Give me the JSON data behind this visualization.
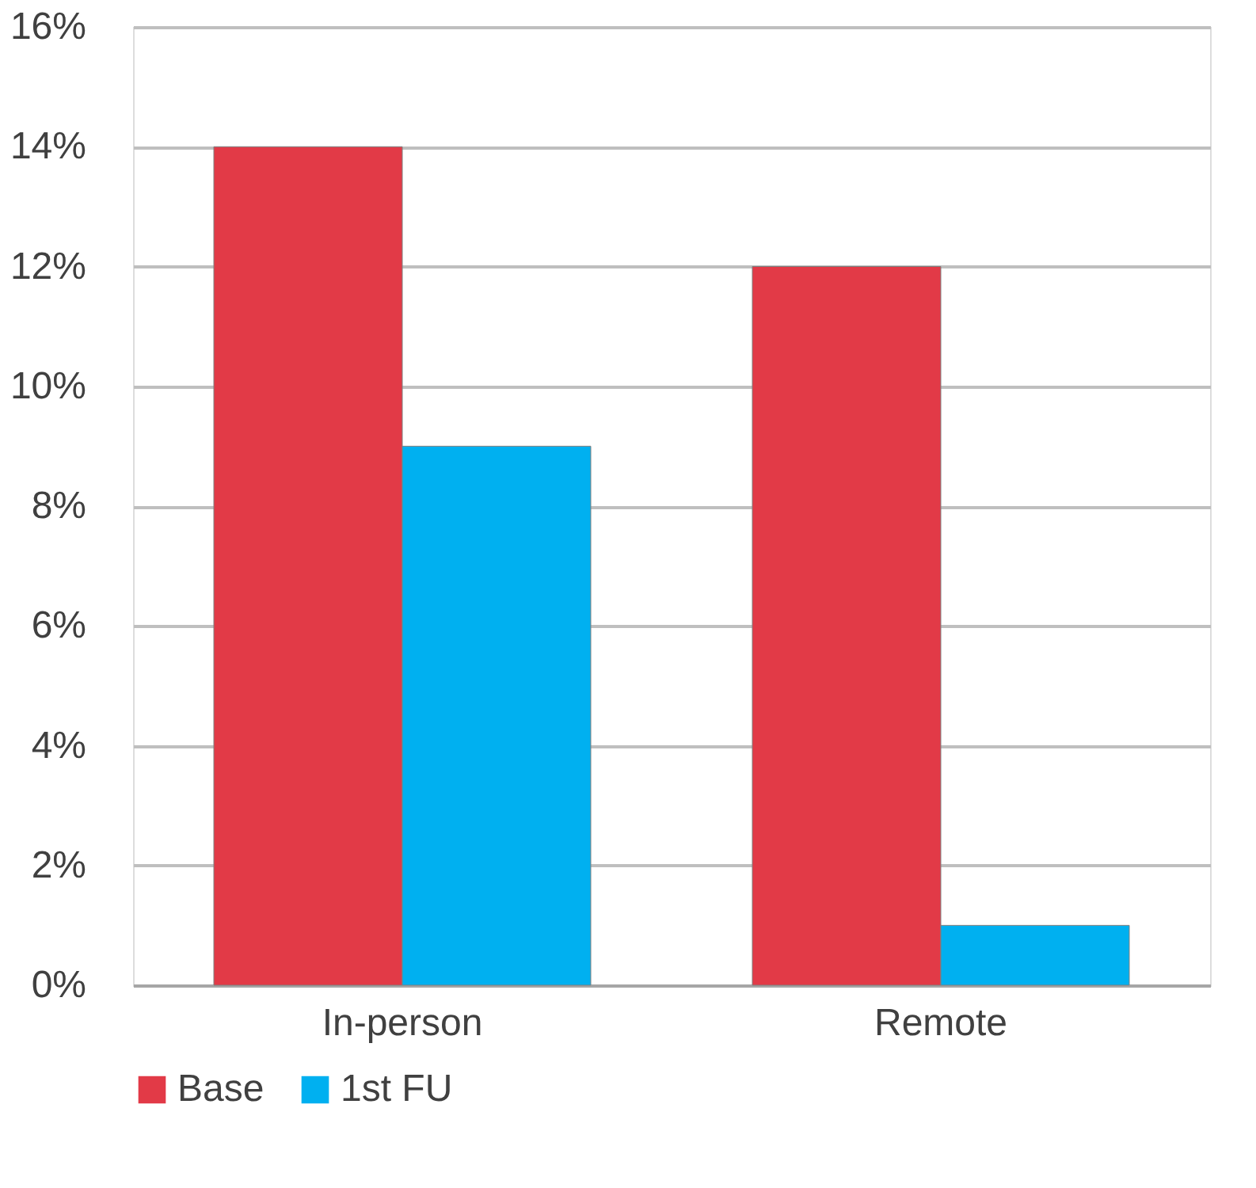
{
  "chart_data": {
    "type": "bar",
    "categories": [
      "In-person",
      "Remote"
    ],
    "series": [
      {
        "name": "Base",
        "color": "#e23a47",
        "values": [
          14,
          12
        ]
      },
      {
        "name": "1st FU",
        "color": "#00b0f0",
        "values": [
          9,
          1
        ]
      }
    ],
    "ylim": [
      0,
      16
    ],
    "yticks": [
      {
        "value": 0,
        "label": "0%"
      },
      {
        "value": 2,
        "label": "2%"
      },
      {
        "value": 4,
        "label": "4%"
      },
      {
        "value": 6,
        "label": "6%"
      },
      {
        "value": 8,
        "label": "8%"
      },
      {
        "value": 10,
        "label": "10%"
      },
      {
        "value": 12,
        "label": "12%"
      },
      {
        "value": 14,
        "label": "14%"
      },
      {
        "value": 16,
        "label": "16%"
      }
    ],
    "grid": "y",
    "legend": "bottom"
  }
}
